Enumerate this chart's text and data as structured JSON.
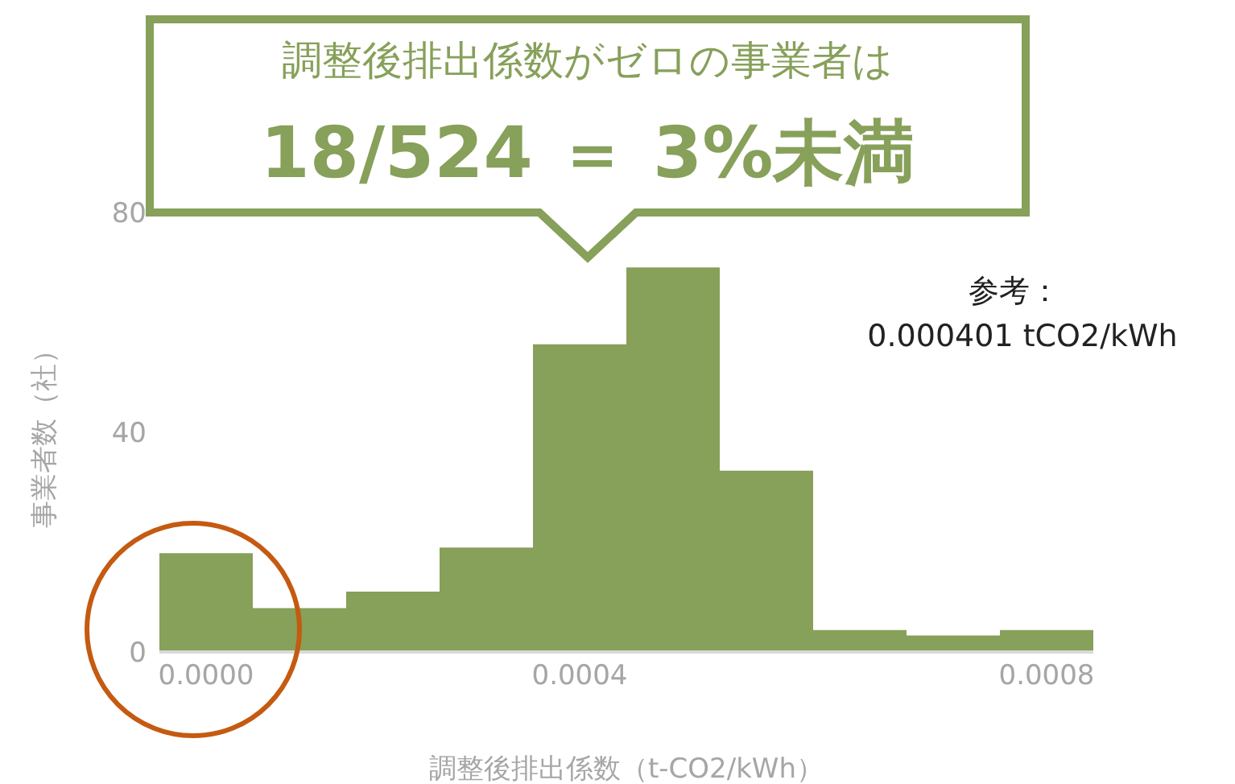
{
  "chart_data": {
    "type": "bar",
    "xlabel": "調整後排出係数（t-CO2/kWh）",
    "ylabel": "事業者数（社）",
    "categories": [
      "0.0000",
      null,
      null,
      null,
      "0.0004",
      null,
      null,
      null,
      null,
      "0.0008"
    ],
    "values": [
      18,
      8,
      11,
      19,
      56,
      70,
      33,
      4,
      3,
      4
    ],
    "color": "#87a05a",
    "ylim": [
      0,
      80
    ],
    "yticks": [
      0,
      40,
      80
    ],
    "grid": false,
    "legend": false,
    "annotations": [
      "調整後排出係数がゼロの事業者は",
      "18/524 ＝ 3%未満",
      "参考：",
      "0.000401 tCO2/kWh"
    ]
  }
}
